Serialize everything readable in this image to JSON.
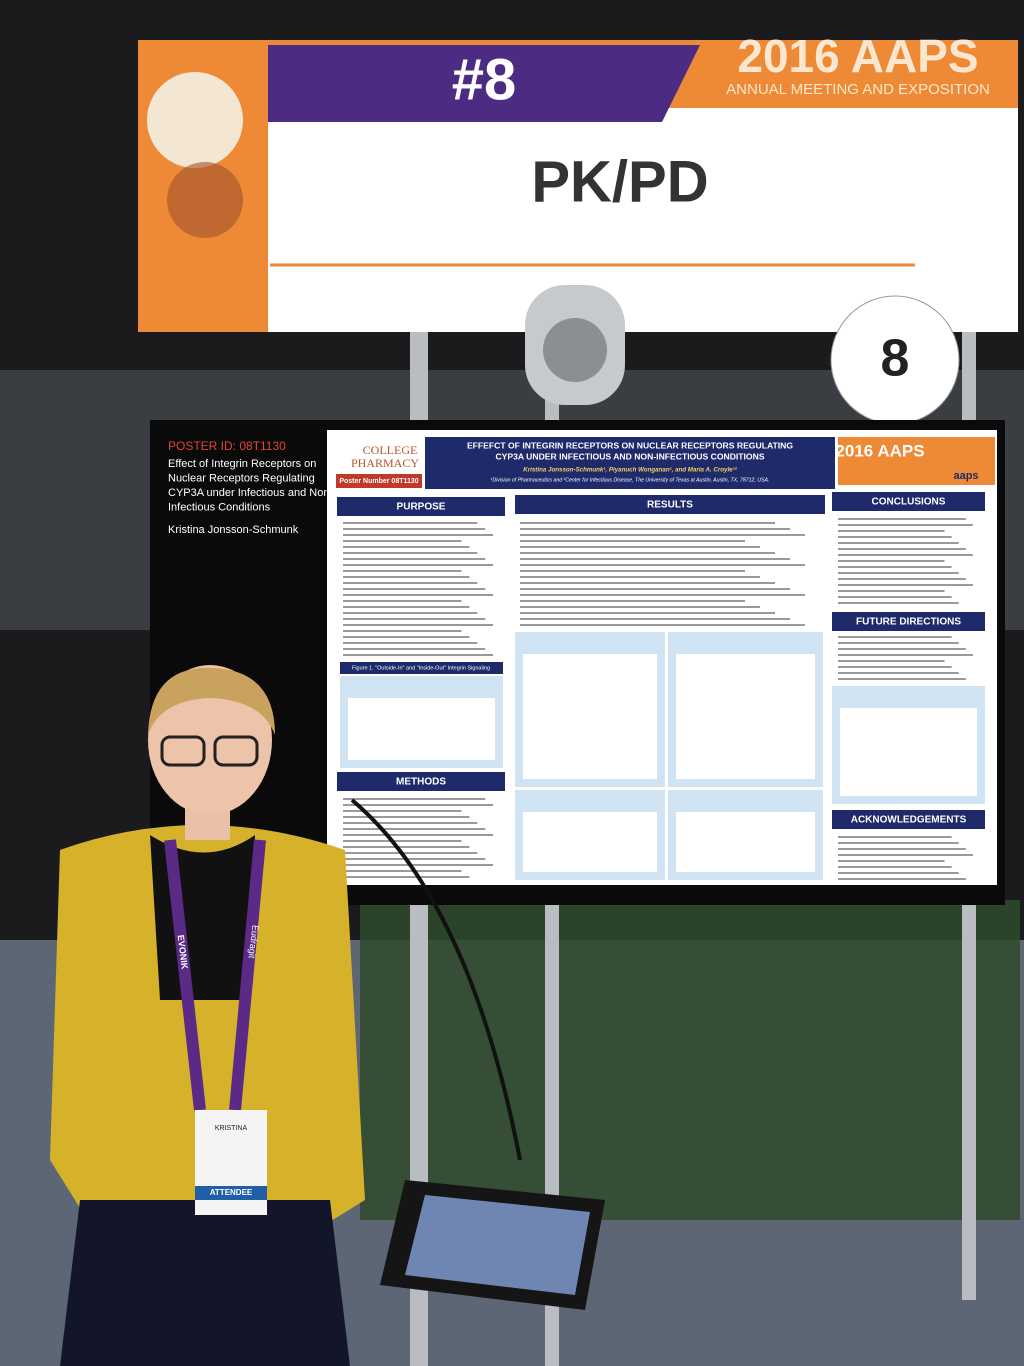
{
  "sign": {
    "number": "#8",
    "event": "2016 AAPS",
    "event_subtitle": "ANNUAL MEETING AND EXPOSITION",
    "topic": "PK/PD",
    "marker": "8"
  },
  "screen_panel": {
    "poster_id": "POSTER ID: 08T1130",
    "title_lines": [
      "Effect of Integrin Receptors on",
      "Nuclear Receptors Regulating",
      "CYP3A under Infectious and Non-",
      "Infectious Conditions"
    ],
    "author": "Kristina Jonsson-Schmunk"
  },
  "poster": {
    "logo_lines": [
      "COLLEGE",
      "PHARMACY"
    ],
    "poster_number": "Poster Number 08T1130",
    "title_lines": [
      "EFFEFCT OF INTEGRIN RECEPTORS ON NUCLEAR RECEPTORS REGULATING",
      "CYP3A UNDER INFECTIOUS AND NON-INFECTIOUS CONDITIONS"
    ],
    "authors": "Kristina Jonsson-Schmunk¹, Piyanuch Wonganan¹, and Maria A. Croyle¹²",
    "affiliation": "¹Division of Pharmaceutics and ²Center for Infectious Disease, The University of Texas at Austin, Austin, TX, 78712, USA.",
    "conference": "2016 AAPS",
    "society": "aaps",
    "sections": [
      "PURPOSE",
      "RESULTS",
      "CONCLUSIONS",
      "FUTURE DIRECTIONS",
      "METHODS",
      "ACKNOWLEDGEMENTS"
    ],
    "figure_caption": "Figure 1. \"Outside-In\" and \"Inside-Out\" Integrin Signaling"
  },
  "badge": {
    "name": "KRISTINA",
    "role": "ATTENDEE",
    "lanyard": [
      "EVONIK",
      "Eudragit"
    ]
  }
}
